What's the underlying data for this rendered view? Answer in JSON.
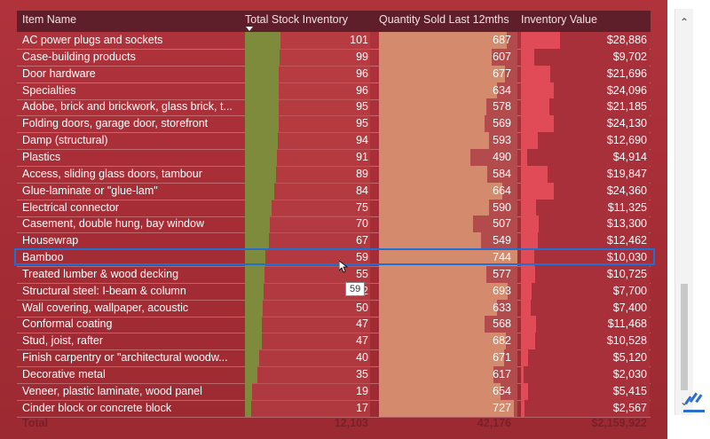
{
  "table": {
    "headers": {
      "item": "Item Name",
      "stock": "Total Stock Inventory",
      "qty": "Quantity Sold Last 12mths",
      "value": "Inventory Value"
    },
    "rows": [
      {
        "name": "AC power plugs and sockets",
        "stock": "101",
        "qty": "687",
        "value": "$28,886"
      },
      {
        "name": "Case-building products",
        "stock": "99",
        "qty": "607",
        "value": "$9,702"
      },
      {
        "name": "Door hardware",
        "stock": "96",
        "qty": "677",
        "value": "$21,696"
      },
      {
        "name": "Specialties",
        "stock": "96",
        "qty": "634",
        "value": "$24,096"
      },
      {
        "name": "Adobe, brick and brickwork, glass brick, t...",
        "stock": "95",
        "qty": "578",
        "value": "$21,185"
      },
      {
        "name": "Folding doors, garage door, storefront",
        "stock": "95",
        "qty": "569",
        "value": "$24,130"
      },
      {
        "name": "Damp (structural)",
        "stock": "94",
        "qty": "593",
        "value": "$12,690"
      },
      {
        "name": "Plastics",
        "stock": "91",
        "qty": "490",
        "value": "$4,914"
      },
      {
        "name": "Access, sliding glass doors, tambour",
        "stock": "89",
        "qty": "584",
        "value": "$19,847"
      },
      {
        "name": "Glue-laminate or \"glue-lam\"",
        "stock": "84",
        "qty": "664",
        "value": "$24,360"
      },
      {
        "name": "Electrical connector",
        "stock": "75",
        "qty": "590",
        "value": "$11,325"
      },
      {
        "name": "Casement, double hung, bay window",
        "stock": "70",
        "qty": "507",
        "value": "$13,300"
      },
      {
        "name": "Housewrap",
        "stock": "67",
        "qty": "549",
        "value": "$12,462"
      },
      {
        "name": "Bamboo",
        "stock": "59",
        "qty": "744",
        "value": "$10,030"
      },
      {
        "name": "Treated lumber & wood decking",
        "stock": "55",
        "qty": "577",
        "value": "$10,725"
      },
      {
        "name": "Structural steel: I-beam & column",
        "stock": "52",
        "qty": "693",
        "value": "$7,700"
      },
      {
        "name": "Wall covering, wallpaper, acoustic",
        "stock": "50",
        "qty": "633",
        "value": "$7,400"
      },
      {
        "name": "Conformal coating",
        "stock": "47",
        "qty": "568",
        "value": "$11,468"
      },
      {
        "name": "Stud, joist, rafter",
        "stock": "47",
        "qty": "682",
        "value": "$10,528"
      },
      {
        "name": "Finish carpentry or \"architectural woodw...",
        "stock": "40",
        "qty": "671",
        "value": "$5,120"
      },
      {
        "name": "Decorative metal",
        "stock": "35",
        "qty": "617",
        "value": "$2,030"
      },
      {
        "name": "Veneer, plastic laminate, wood panel",
        "stock": "19",
        "qty": "654",
        "value": "$5,415"
      },
      {
        "name": "Cinder block or concrete block",
        "stock": "17",
        "qty": "727",
        "value": "$2,567"
      }
    ],
    "total": {
      "label": "Total",
      "stock": "12,103",
      "qty": "42,176",
      "value": "$2,159,922"
    }
  },
  "tooltip": "59",
  "colors": {
    "background": "#a52c35",
    "header": "#5f1f2a",
    "stock_bar": "#7e8a3c",
    "qty_bar": "#d38a6d",
    "value_bar": "#e14a57",
    "selection": "#1f6fd6"
  },
  "icons": {
    "scroll_up": "chevron-up-icon",
    "scroll_down": "chevron-down-icon",
    "cursor": "mouse-pointer-icon",
    "logo": "watermark-logo-icon"
  }
}
